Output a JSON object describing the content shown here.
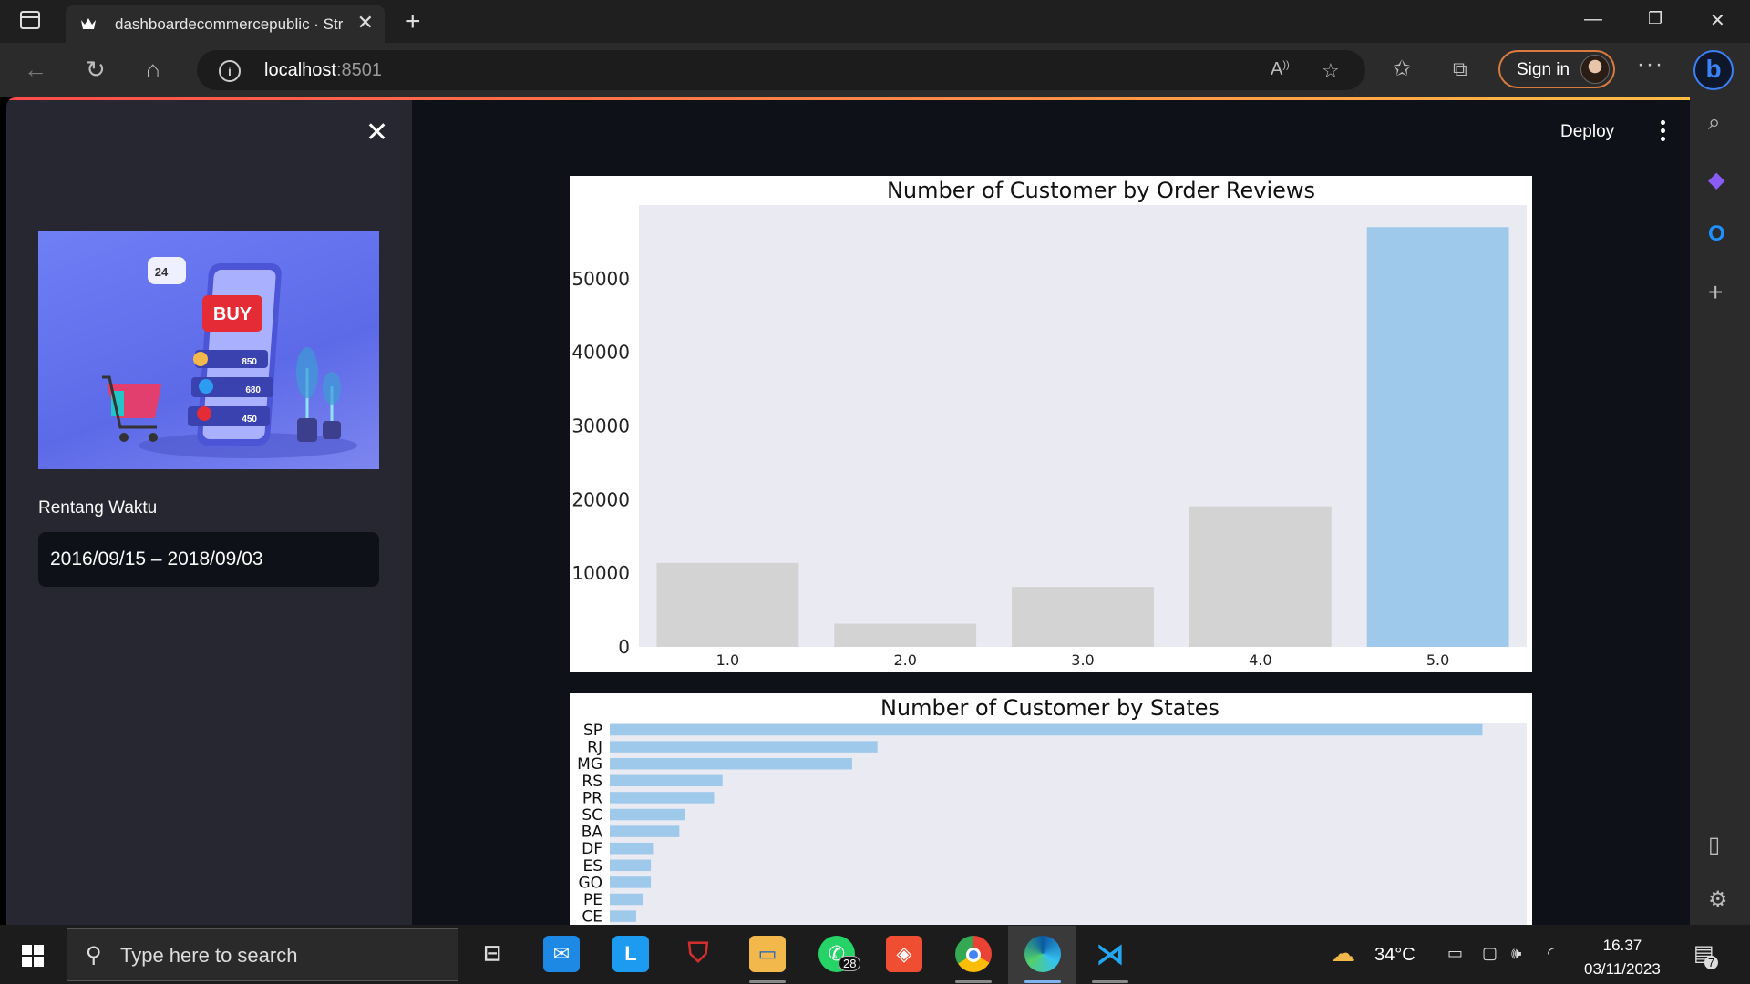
{
  "browser": {
    "tab_title": "dashboardecommercepublic · Streamlit",
    "url_host": "localhost",
    "url_port": ":8501",
    "sign_in": "Sign in"
  },
  "icons": [
    "window-icon",
    "close-icon",
    "plus-icon",
    "back-icon",
    "refresh-icon",
    "home-icon",
    "info-icon",
    "read-aloud-icon",
    "favorite-add-icon",
    "favorites-icon",
    "collections-icon",
    "more-icon",
    "search-icon",
    "copilot-icon",
    "outlook-icon",
    "sidebar-toggle-icon",
    "settings-icon",
    "windows-start-icon",
    "task-view-icon",
    "mail-icon",
    "weather-icon",
    "battery-icon",
    "volume-icon",
    "wifi-icon",
    "notification-icon"
  ],
  "streamlit": {
    "deploy": "Deploy",
    "sidebar": {
      "close": "✕",
      "date_label": "Rentang Waktu",
      "date_value": "2016/09/15 – 2018/09/03"
    }
  },
  "hero_image": {
    "buy": "BUY",
    "clock": "24",
    "values": [
      "850",
      "680",
      "450"
    ]
  },
  "chart_data": [
    {
      "type": "bar",
      "title": "Number of Customer by Order Reviews",
      "categories": [
        "1.0",
        "2.0",
        "3.0",
        "4.0",
        "5.0"
      ],
      "values": [
        11400,
        3150,
        8150,
        19100,
        57000
      ],
      "ylim": [
        0,
        60000
      ],
      "yticks": [
        0,
        10000,
        20000,
        30000,
        40000,
        50000
      ],
      "highlight": "5.0",
      "colors": {
        "highlight": "#9ec9eb",
        "default": "#d3d3d3",
        "plot_bg": "#eaeaf2"
      }
    },
    {
      "type": "bar",
      "orientation": "horizontal",
      "title": "Number of Customer by States",
      "categories": [
        "SP",
        "RJ",
        "MG",
        "RS",
        "PR",
        "SC",
        "BA",
        "DF",
        "ES",
        "GO",
        "PE",
        "CE"
      ],
      "values": [
        41400,
        12700,
        11500,
        5350,
        4950,
        3550,
        3300,
        2050,
        1950,
        1950,
        1600,
        1250
      ],
      "xlim": [
        0,
        43500
      ],
      "colors": {
        "bar": "#9ec9eb",
        "plot_bg": "#eaeaf2"
      }
    }
  ],
  "taskbar": {
    "search_placeholder": "Type here to search",
    "whatsapp_badge": "28",
    "temperature": "34°C",
    "time": "16.37",
    "date": "03/11/2023",
    "notification_count": "7"
  }
}
